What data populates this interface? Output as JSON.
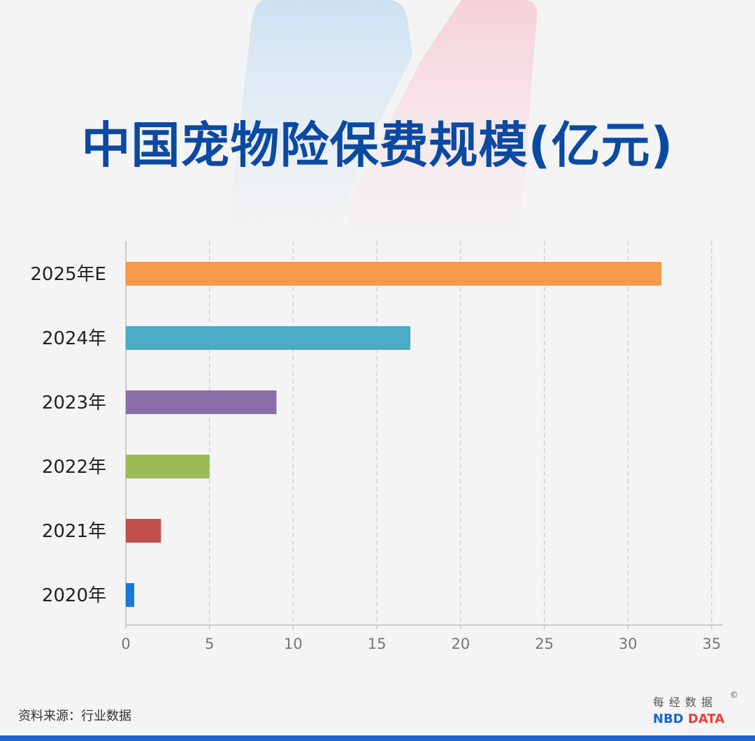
{
  "chart_data": {
    "type": "bar",
    "orientation": "horizontal",
    "title": "中国宠物险保费规模(亿元)",
    "categories": [
      "2025年E",
      "2024年",
      "2023年",
      "2022年",
      "2021年",
      "2020年"
    ],
    "values": [
      32,
      17,
      9,
      5,
      2.1,
      0.5
    ],
    "colors": [
      "#f5994a",
      "#4bacc6",
      "#8a6ea9",
      "#9bbb59",
      "#c0504d",
      "#1a78dd"
    ],
    "xlim": [
      0,
      35
    ],
    "xticks": [
      "0",
      "5",
      "10",
      "15",
      "20",
      "25",
      "30",
      "35"
    ],
    "grid": true,
    "grid_style": "dashed vertical"
  },
  "source": "资料来源：行业数据",
  "logo": {
    "cn": "每经数据",
    "copyright": "©",
    "nbd": "NBD",
    "data": "DATA"
  }
}
